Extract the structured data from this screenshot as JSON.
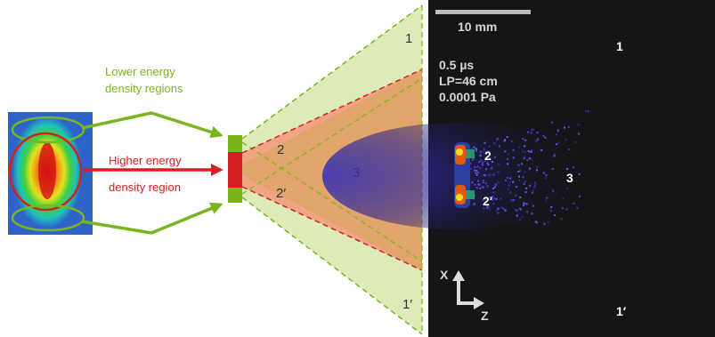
{
  "beam_profile": {
    "lower_label_line1": "Lower energy",
    "lower_label_line2": "density regions",
    "higher_label_line1": "Higher energy",
    "higher_label_line2": "density region"
  },
  "schematic": {
    "region_1": "1",
    "region_1p": "1′",
    "region_2": "2",
    "region_2p": "2′",
    "region_3": "3"
  },
  "photo": {
    "scale_bar": "10 mm",
    "time": "0.5 µs",
    "lp": "LP=46 cm",
    "pressure": "0.0001 Pa",
    "region_1": "1",
    "region_1p": "1′",
    "region_2": "2",
    "region_2p": "2′",
    "region_3": "3",
    "axis_x": "X",
    "axis_z": "Z"
  },
  "colors": {
    "green": "#7ab51d",
    "red": "#d42020",
    "light_green": "#dcebb8",
    "salmon": "#f0a585",
    "orange": "#e1a46a",
    "photo_bg": "#151518"
  }
}
